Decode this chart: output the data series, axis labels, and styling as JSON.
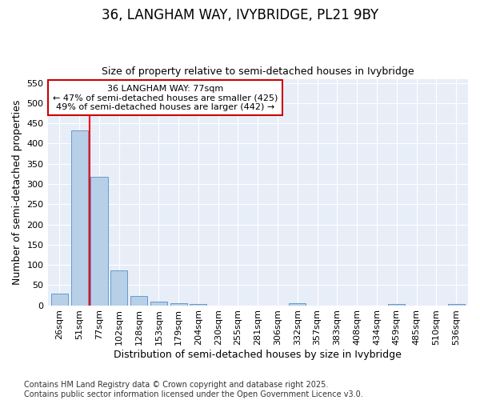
{
  "title": "36, LANGHAM WAY, IVYBRIDGE, PL21 9BY",
  "subtitle": "Size of property relative to semi-detached houses in Ivybridge",
  "xlabel": "Distribution of semi-detached houses by size in Ivybridge",
  "ylabel": "Number of semi-detached properties",
  "categories": [
    "26sqm",
    "51sqm",
    "77sqm",
    "102sqm",
    "128sqm",
    "153sqm",
    "179sqm",
    "204sqm",
    "230sqm",
    "255sqm",
    "281sqm",
    "306sqm",
    "332sqm",
    "357sqm",
    "383sqm",
    "408sqm",
    "434sqm",
    "459sqm",
    "485sqm",
    "510sqm",
    "536sqm"
  ],
  "values": [
    28,
    432,
    318,
    87,
    23,
    10,
    6,
    4,
    0,
    0,
    0,
    0,
    5,
    0,
    0,
    0,
    0,
    4,
    0,
    0,
    4
  ],
  "bar_color": "#b8cfe8",
  "bar_edge_color": "#6699cc",
  "red_line_x": 1.5,
  "annotation_text_line1": "36 LANGHAM WAY: 77sqm",
  "annotation_text_line2": "← 47% of semi-detached houses are smaller (425)",
  "annotation_text_line3": "49% of semi-detached houses are larger (442) →",
  "annotation_box_color": "#ffffff",
  "annotation_box_edge": "#cc0000",
  "ylim": [
    0,
    560
  ],
  "yticks": [
    0,
    50,
    100,
    150,
    200,
    250,
    300,
    350,
    400,
    450,
    500,
    550
  ],
  "footnote": "Contains HM Land Registry data © Crown copyright and database right 2025.\nContains public sector information licensed under the Open Government Licence v3.0.",
  "bg_color": "#ffffff",
  "plot_bg_color": "#e8eef8",
  "grid_color": "#ffffff",
  "title_fontsize": 12,
  "subtitle_fontsize": 9,
  "axis_label_fontsize": 9,
  "tick_fontsize": 8,
  "annotation_fontsize": 8,
  "footnote_fontsize": 7
}
